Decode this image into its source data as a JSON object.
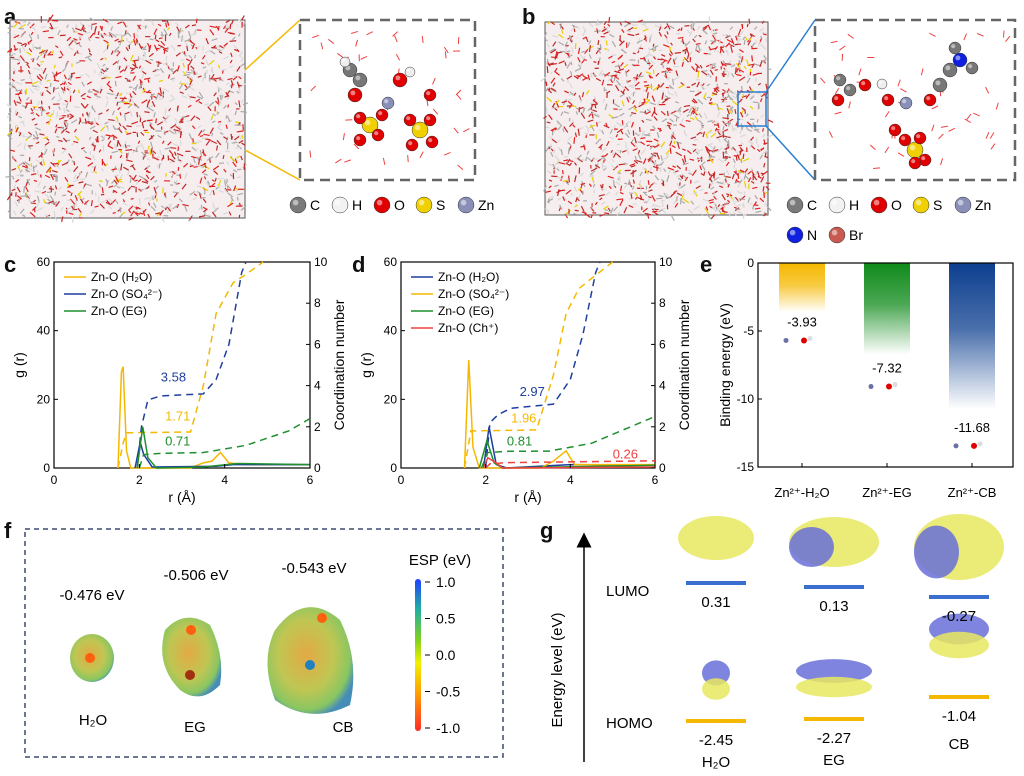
{
  "panels": {
    "a": {
      "label": "a",
      "legend": [
        {
          "symbol": "C",
          "color": "#7a7a7a"
        },
        {
          "symbol": "H",
          "color": "#f2f2f2"
        },
        {
          "symbol": "O",
          "color": "#e00000"
        },
        {
          "symbol": "S",
          "color": "#f0d000"
        },
        {
          "symbol": "Zn",
          "color": "#8a8fb8"
        }
      ],
      "connector_color": "#f5b800"
    },
    "b": {
      "label": "b",
      "legend": [
        {
          "symbol": "C",
          "color": "#7a7a7a"
        },
        {
          "symbol": "H",
          "color": "#f2f2f2"
        },
        {
          "symbol": "O",
          "color": "#e00000"
        },
        {
          "symbol": "S",
          "color": "#f0d000"
        },
        {
          "symbol": "Zn",
          "color": "#8a8fb8"
        },
        {
          "symbol": "N",
          "color": "#1020e0"
        },
        {
          "symbol": "Br",
          "color": "#c85a50"
        }
      ],
      "connector_color": "#2a7fd0"
    },
    "c": {
      "label": "c"
    },
    "d": {
      "label": "d"
    },
    "e": {
      "label": "e"
    },
    "f": {
      "label": "f",
      "molecules": [
        {
          "name": "H₂O",
          "esp": "-0.476 eV"
        },
        {
          "name": "EG",
          "esp": "-0.506 eV"
        },
        {
          "name": "CB",
          "esp": "-0.543 eV"
        }
      ],
      "colorbar": {
        "title": "ESP (eV)",
        "ticks": [
          "1.0",
          "0.5",
          "0.0",
          "-0.5",
          "-1.0"
        ],
        "range": [
          -1.0,
          1.0
        ]
      }
    },
    "g": {
      "label": "g",
      "ylabel": "Energy level (eV)",
      "lumo_label": "LUMO",
      "homo_label": "HOMO",
      "lumo_color": "#3a6fcf",
      "homo_color": "#f5b800",
      "molecules": [
        {
          "name": "H₂O",
          "lumo": "0.31",
          "homo": "-2.45"
        },
        {
          "name": "EG",
          "lumo": "0.13",
          "homo": "-2.27"
        },
        {
          "name": "CB",
          "lumo": "-0.27",
          "homo": "-1.04"
        }
      ]
    }
  },
  "chart_data": [
    {
      "panel": "c",
      "type": "line",
      "xlabel": "r (Å)",
      "ylabel": "g (r)",
      "y2label": "Coordination number",
      "xlim": [
        0,
        6
      ],
      "ylim": [
        0,
        60
      ],
      "y2lim": [
        0,
        10
      ],
      "xticks": [
        "0",
        "2",
        "4",
        "6"
      ],
      "yticks": [
        "0",
        "20",
        "40",
        "60"
      ],
      "y2ticks": [
        "0",
        "2",
        "4",
        "6",
        "8",
        "10"
      ],
      "legend_placement": "top-left",
      "series": [
        {
          "name": "Zn-O (H₂O)",
          "color": "#f5b800",
          "rdf": [
            [
              1.5,
              0
            ],
            [
              1.58,
              28
            ],
            [
              1.62,
              29.5
            ],
            [
              1.7,
              5
            ],
            [
              1.8,
              0
            ],
            [
              3.2,
              0
            ],
            [
              3.5,
              1.5
            ],
            [
              3.7,
              2
            ],
            [
              3.9,
              4.5
            ],
            [
              4.1,
              1.5
            ],
            [
              4.5,
              1
            ],
            [
              6,
              1
            ]
          ],
          "cn": [
            [
              1.5,
              0
            ],
            [
              1.62,
              1.2
            ],
            [
              1.7,
              1.71
            ],
            [
              3.2,
              1.75
            ],
            [
              3.5,
              4
            ],
            [
              3.8,
              7.5
            ],
            [
              4.2,
              9
            ],
            [
              4.5,
              9.4
            ],
            [
              4.9,
              10
            ]
          ],
          "cn_label": "1.71",
          "cn_label_at": [
            2.9,
            2.3
          ]
        },
        {
          "name": "Zn-O (SO₄²⁻)",
          "color": "#1f3f9f",
          "rdf": [
            [
              1.9,
              0
            ],
            [
              2.02,
              7.5
            ],
            [
              2.1,
              4
            ],
            [
              2.3,
              0.3
            ],
            [
              3.8,
              0.5
            ],
            [
              4.2,
              1
            ],
            [
              6,
              1
            ]
          ],
          "cn": [
            [
              1.95,
              0
            ],
            [
              2.05,
              2
            ],
            [
              2.2,
              3.3
            ],
            [
              2.5,
              3.5
            ],
            [
              3.5,
              3.6
            ],
            [
              3.8,
              4.3
            ],
            [
              4.1,
              6
            ],
            [
              4.4,
              9.5
            ],
            [
              4.5,
              10
            ]
          ],
          "cn_label": "3.58",
          "cn_label_at": [
            2.8,
            4.2
          ]
        },
        {
          "name": "Zn-O (EG)",
          "color": "#1f8f2f",
          "rdf": [
            [
              1.95,
              0
            ],
            [
              2.08,
              12
            ],
            [
              2.2,
              3
            ],
            [
              2.4,
              0
            ],
            [
              3.5,
              0.3
            ],
            [
              4.3,
              1.3
            ],
            [
              6,
              1
            ]
          ],
          "cn": [
            [
              2.0,
              0
            ],
            [
              2.1,
              0.65
            ],
            [
              2.5,
              0.71
            ],
            [
              3.5,
              0.75
            ],
            [
              4.5,
              1.1
            ],
            [
              5.5,
              1.8
            ],
            [
              6,
              2.4
            ]
          ],
          "cn_label": "0.71",
          "cn_label_at": [
            2.9,
            1.1
          ]
        }
      ]
    },
    {
      "panel": "d",
      "type": "line",
      "xlabel": "r (Å)",
      "ylabel": "g (r)",
      "y2label": "Coordination number",
      "xlim": [
        0,
        6
      ],
      "ylim": [
        0,
        60
      ],
      "y2lim": [
        0,
        10
      ],
      "xticks": [
        "0",
        "2",
        "4",
        "6"
      ],
      "yticks": [
        "0",
        "20",
        "40",
        "60"
      ],
      "y2ticks": [
        "0",
        "2",
        "4",
        "6",
        "8",
        "10"
      ],
      "legend_placement": "top-left",
      "series": [
        {
          "name": "Zn-O (H₂O)",
          "color": "#1f3f9f",
          "rdf": [
            [
              1.95,
              0
            ],
            [
              2.08,
              12
            ],
            [
              2.25,
              1
            ],
            [
              2.5,
              0
            ],
            [
              4,
              1
            ],
            [
              6,
              0.8
            ]
          ],
          "cn": [
            [
              2.0,
              0
            ],
            [
              2.1,
              2.2
            ],
            [
              2.3,
              2.6
            ],
            [
              2.6,
              2.9
            ],
            [
              3.6,
              3.1
            ],
            [
              4.0,
              4.3
            ],
            [
              4.3,
              6.5
            ],
            [
              4.6,
              9.5
            ],
            [
              4.7,
              10
            ]
          ],
          "cn_label": "2.97",
          "cn_label_at": [
            3.1,
            3.5
          ]
        },
        {
          "name": "Zn-O (SO₄²⁻)",
          "color": "#f5b800",
          "rdf": [
            [
              1.5,
              0
            ],
            [
              1.6,
              31.5
            ],
            [
              1.7,
              6
            ],
            [
              1.85,
              0
            ],
            [
              3.3,
              0
            ],
            [
              3.6,
              2
            ],
            [
              3.9,
              5
            ],
            [
              4.1,
              1
            ],
            [
              6,
              1
            ]
          ],
          "cn": [
            [
              1.5,
              0
            ],
            [
              1.65,
              1.8
            ],
            [
              3.2,
              1.85
            ],
            [
              3.6,
              4.5
            ],
            [
              3.9,
              7.5
            ],
            [
              4.2,
              8.7
            ],
            [
              4.5,
              9.2
            ],
            [
              5,
              10
            ]
          ],
          "cn_label": "1.96",
          "cn_label_at": [
            2.9,
            2.2
          ]
        },
        {
          "name": "Zn-O (EG)",
          "color": "#1f8f2f",
          "rdf": [
            [
              1.85,
              0
            ],
            [
              2.03,
              8
            ],
            [
              2.2,
              1.5
            ],
            [
              2.4,
              0
            ],
            [
              6,
              0.8
            ]
          ],
          "cn": [
            [
              1.9,
              0
            ],
            [
              2.05,
              0.75
            ],
            [
              2.5,
              0.81
            ],
            [
              3.5,
              0.82
            ],
            [
              4.5,
              1.2
            ],
            [
              6,
              2.5
            ]
          ],
          "cn_label": "0.81",
          "cn_label_at": [
            2.8,
            1.1
          ]
        },
        {
          "name": "Zn-O (Ch⁺)",
          "color": "#f04040",
          "rdf": [
            [
              1.95,
              0
            ],
            [
              2.05,
              3
            ],
            [
              2.25,
              1.5
            ],
            [
              2.4,
              0
            ],
            [
              6,
              0.3
            ]
          ],
          "cn": [
            [
              2.0,
              0
            ],
            [
              2.1,
              0.2
            ],
            [
              2.5,
              0.26
            ],
            [
              6,
              0.35
            ]
          ],
          "cn_label": "0.26",
          "cn_label_at": [
            5.3,
            0.45
          ]
        }
      ]
    },
    {
      "panel": "e",
      "type": "bar",
      "ylabel": "Binding energy (eV)",
      "ylim": [
        -15,
        0
      ],
      "yticks": [
        "0",
        "-5",
        "-10",
        "-15"
      ],
      "categories": [
        "Zn²⁺-H₂O",
        "Zn²⁺-EG",
        "Zn²⁺-CB"
      ],
      "values": [
        -3.93,
        -7.32,
        -11.68
      ],
      "value_labels": [
        "-3.93",
        "-7.32",
        "-11.68"
      ],
      "colors": [
        "#f5b800",
        "#0f8a1a",
        "#0d3f8f"
      ]
    }
  ]
}
